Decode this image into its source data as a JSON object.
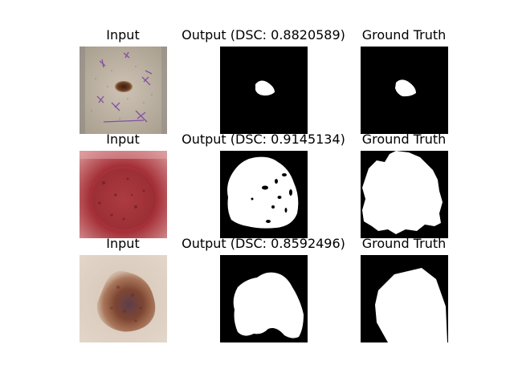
{
  "figure": {
    "rows": [
      {
        "input_title": "Input",
        "output_title": "Output (DSC: 0.8820589)",
        "truth_title": "Ground Truth"
      },
      {
        "input_title": "Input",
        "output_title": "Output (DSC: 0.9145134)",
        "truth_title": "Ground Truth"
      },
      {
        "input_title": "Input",
        "output_title": "Output (DSC: 0.8592496)",
        "truth_title": "Ground Truth"
      }
    ]
  }
}
